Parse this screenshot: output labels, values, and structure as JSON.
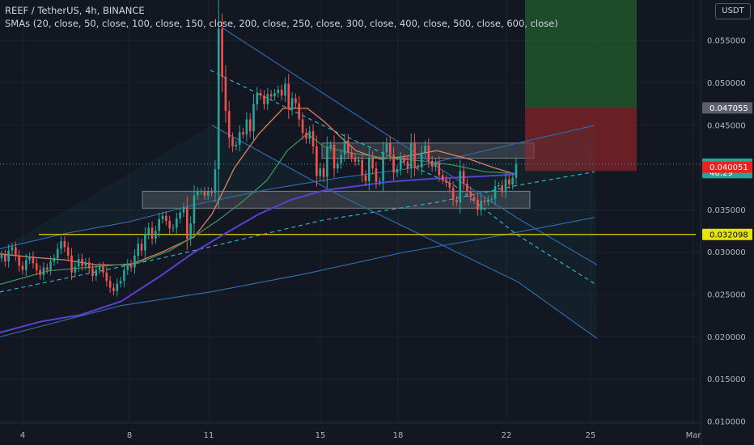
{
  "header": {
    "symbol_line": "REEF / TetherUS, 4h, BINANCE",
    "indicator_line": "SMAs (20, close, 50, close, 100, close, 150, close, 200, close, 250, close, 300, close, 400, close, 500, close, 600, close)",
    "unit_button": "USDT"
  },
  "colors": {
    "background": "#131722",
    "up": "#26a69a",
    "down": "#ef5350",
    "sma_fast": "#e08060",
    "sma_mid": "#3f8f55",
    "sma_slow": "#5b3fd0",
    "trend": "#2f6aa8",
    "support": "#d7d700"
  },
  "chart_data": {
    "type": "candlestick",
    "x_ticks": [
      "4",
      "8",
      "11",
      "15",
      "18",
      "22",
      "25",
      "Mar"
    ],
    "y_ticks": [
      "0.055000",
      "0.050000",
      "0.045000",
      "0.035000",
      "0.030000",
      "0.025000",
      "0.020000",
      "0.015000",
      "0.010000"
    ],
    "ylim": [
      0.0098,
      0.0598
    ],
    "price_labels": [
      {
        "name": "target",
        "value": 0.047055,
        "label": "0.047055",
        "bg": "#5d606b",
        "fg": "#ffffff"
      },
      {
        "name": "last-price",
        "value": 0.0404,
        "label": "0.040400",
        "bg": "#26a69a",
        "fg": "#ffffff"
      },
      {
        "name": "countdown",
        "value": 0.0394,
        "label": "46:29",
        "bg": "#26a69a",
        "fg": "#ffffff"
      },
      {
        "name": "stop",
        "value": 0.040051,
        "label": "0.040051",
        "bg": "#ef2020",
        "fg": "#ffffff"
      },
      {
        "name": "support",
        "value": 0.032098,
        "label": "0.032098",
        "bg": "#e6e600",
        "fg": "#000000"
      }
    ],
    "candle_closes": [
      0.0297,
      0.0289,
      0.0302,
      0.0306,
      0.0296,
      0.0284,
      0.0279,
      0.0291,
      0.0295,
      0.0287,
      0.0279,
      0.0273,
      0.0282,
      0.0279,
      0.0289,
      0.0293,
      0.0304,
      0.0313,
      0.0306,
      0.0296,
      0.0276,
      0.0283,
      0.0292,
      0.0284,
      0.0288,
      0.0281,
      0.0272,
      0.0279,
      0.0283,
      0.0276,
      0.0266,
      0.0258,
      0.0254,
      0.0263,
      0.0266,
      0.0279,
      0.0286,
      0.0282,
      0.0296,
      0.031,
      0.0302,
      0.0321,
      0.0329,
      0.0316,
      0.0325,
      0.0339,
      0.0343,
      0.0337,
      0.0328,
      0.0329,
      0.034,
      0.0347,
      0.0353,
      0.0316,
      0.0334,
      0.0367,
      0.0372,
      0.0372,
      0.0367,
      0.0372,
      0.037,
      0.0398,
      0.0564,
      0.0507,
      0.0467,
      0.0435,
      0.0425,
      0.0427,
      0.0442,
      0.0439,
      0.0457,
      0.0443,
      0.0475,
      0.0488,
      0.0485,
      0.0475,
      0.0487,
      0.0484,
      0.0488,
      0.0492,
      0.0485,
      0.0499,
      0.0469,
      0.0482,
      0.0476,
      0.0457,
      0.0441,
      0.0434,
      0.0443,
      0.0425,
      0.039,
      0.0399,
      0.0389,
      0.0424,
      0.0427,
      0.0399,
      0.0405,
      0.0415,
      0.0432,
      0.0418,
      0.0412,
      0.0407,
      0.0409,
      0.0391,
      0.0384,
      0.0412,
      0.0399,
      0.0383,
      0.0384,
      0.0418,
      0.0429,
      0.0415,
      0.0394,
      0.0398,
      0.0411,
      0.0407,
      0.0399,
      0.0429,
      0.0401,
      0.04,
      0.0418,
      0.0426,
      0.0408,
      0.0401,
      0.0406,
      0.0391,
      0.0386,
      0.0382,
      0.0376,
      0.0362,
      0.0359,
      0.0396,
      0.0381,
      0.0372,
      0.0365,
      0.0362,
      0.035,
      0.0361,
      0.0359,
      0.0362,
      0.0363,
      0.0378,
      0.0379,
      0.0371,
      0.0386,
      0.038,
      0.0388,
      0.0404
    ],
    "candle_x_start": 2,
    "candle_x_end": 638,
    "series": [
      {
        "kind": "sma-fast",
        "points": [
          [
            0,
            0.0298
          ],
          [
            40,
            0.0294
          ],
          [
            80,
            0.0291
          ],
          [
            120,
            0.0285
          ],
          [
            160,
            0.0285
          ],
          [
            200,
            0.03
          ],
          [
            240,
            0.0318
          ],
          [
            262,
            0.0345
          ],
          [
            290,
            0.04
          ],
          [
            320,
            0.044
          ],
          [
            350,
            0.047
          ],
          [
            380,
            0.047
          ],
          [
            400,
            0.0455
          ],
          [
            420,
            0.0437
          ],
          [
            440,
            0.042
          ],
          [
            470,
            0.041
          ],
          [
            500,
            0.0413
          ],
          [
            540,
            0.042
          ],
          [
            580,
            0.041
          ],
          [
            610,
            0.04
          ],
          [
            638,
            0.0392
          ]
        ]
      },
      {
        "kind": "sma-mid",
        "points": [
          [
            0,
            0.0262
          ],
          [
            60,
            0.0278
          ],
          [
            120,
            0.0283
          ],
          [
            170,
            0.0287
          ],
          [
            210,
            0.0302
          ],
          [
            245,
            0.0322
          ],
          [
            270,
            0.0338
          ],
          [
            300,
            0.036
          ],
          [
            330,
            0.0385
          ],
          [
            355,
            0.042
          ],
          [
            380,
            0.044
          ],
          [
            400,
            0.0425
          ],
          [
            430,
            0.0418
          ],
          [
            470,
            0.0412
          ],
          [
            520,
            0.0408
          ],
          [
            560,
            0.0403
          ],
          [
            600,
            0.0395
          ],
          [
            638,
            0.0393
          ]
        ]
      },
      {
        "kind": "sma-slow",
        "points": [
          [
            0,
            0.0205
          ],
          [
            50,
            0.0218
          ],
          [
            100,
            0.0226
          ],
          [
            150,
            0.0242
          ],
          [
            200,
            0.0273
          ],
          [
            240,
            0.03
          ],
          [
            280,
            0.0323
          ],
          [
            320,
            0.0345
          ],
          [
            360,
            0.0362
          ],
          [
            400,
            0.0373
          ],
          [
            440,
            0.0378
          ],
          [
            480,
            0.0383
          ],
          [
            520,
            0.0386
          ],
          [
            560,
            0.0388
          ],
          [
            600,
            0.039
          ],
          [
            638,
            0.0392
          ]
        ]
      }
    ],
    "trend_lines": [
      {
        "style": "solid",
        "points": [
          [
            0,
            0.0304
          ],
          [
            80,
            0.0322
          ],
          [
            160,
            0.0336
          ],
          [
            240,
            0.0356
          ],
          [
            330,
            0.0374
          ],
          [
            420,
            0.0388
          ],
          [
            500,
            0.0398
          ],
          [
            640,
            0.0429
          ],
          [
            735,
            0.045
          ]
        ]
      },
      {
        "style": "solid",
        "points": [
          [
            0,
            0.02
          ],
          [
            150,
            0.0237
          ],
          [
            260,
            0.0253
          ],
          [
            380,
            0.0275
          ],
          [
            500,
            0.03
          ],
          [
            620,
            0.032
          ],
          [
            735,
            0.0341
          ]
        ]
      },
      {
        "style": "dashed",
        "points": [
          [
            0,
            0.0253
          ],
          [
            200,
            0.0293
          ],
          [
            400,
            0.0338
          ],
          [
            540,
            0.0359
          ],
          [
            640,
            0.0379
          ],
          [
            735,
            0.0395
          ]
        ]
      },
      {
        "style": "solid",
        "points": [
          [
            275,
            0.0565
          ],
          [
            470,
            0.0444
          ],
          [
            640,
            0.034
          ],
          [
            738,
            0.0285
          ]
        ]
      },
      {
        "style": "dashed",
        "points": [
          [
            260,
            0.0515
          ],
          [
            420,
            0.044
          ],
          [
            560,
            0.038
          ],
          [
            640,
            0.032
          ],
          [
            738,
            0.0261
          ]
        ]
      },
      {
        "style": "solid",
        "points": [
          [
            262,
            0.045
          ],
          [
            420,
            0.0367
          ],
          [
            640,
            0.0265
          ],
          [
            738,
            0.0198
          ]
        ]
      }
    ],
    "zones": [
      {
        "kind": "resistance-rect",
        "x0": 398,
        "x1": 660,
        "y0": 0.0411,
        "y1": 0.0429
      },
      {
        "kind": "support-rect",
        "x0": 176,
        "x1": 655,
        "y0": 0.0352,
        "y1": 0.0372
      },
      {
        "kind": "profit",
        "x0": 649,
        "x1": 787,
        "y0": 0.047055,
        "y1": 0.0598
      },
      {
        "kind": "risk",
        "x0": 649,
        "x1": 787,
        "y0": 0.0396,
        "y1": 0.047055
      }
    ],
    "support_line": {
      "value": 0.032098,
      "x0": 48,
      "x1": 860
    }
  }
}
